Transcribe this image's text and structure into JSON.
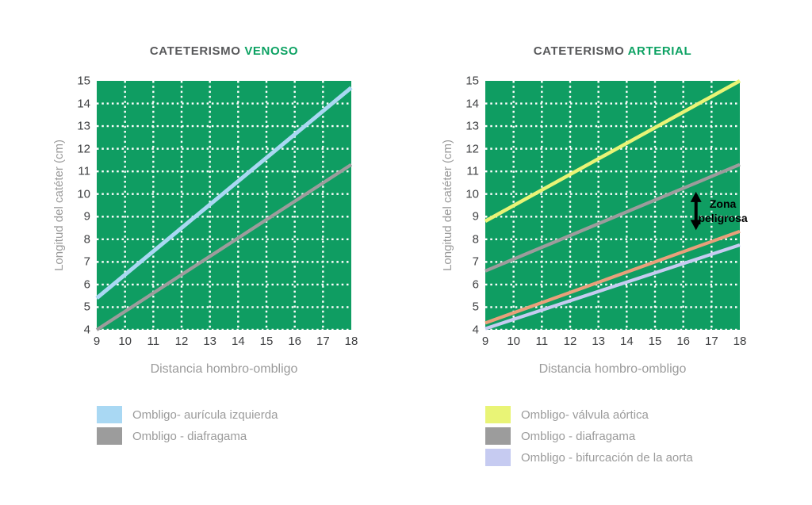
{
  "colors": {
    "plot_background": "#0f9d62",
    "grid": "#ffffff",
    "title_text": "#58595b",
    "title_accent": "#0da263",
    "axis_title_text": "#9b9b9b",
    "tick_text": "#3e3f41",
    "annotation_text": "#000000"
  },
  "chart_data": [
    {
      "id": "venoso",
      "type": "line",
      "title_prefix": "CATETERISMO",
      "title_accent": "VENOSO",
      "xlabel": "Distancia hombro-ombligo",
      "ylabel": "Longitud del catéter (cm)",
      "xlim": [
        9,
        18
      ],
      "ylim": [
        4,
        15
      ],
      "x_ticks": [
        9,
        10,
        11,
        12,
        13,
        14,
        15,
        16,
        17,
        18
      ],
      "y_ticks": [
        4,
        5,
        6,
        7,
        8,
        9,
        10,
        11,
        12,
        13,
        14,
        15
      ],
      "grid": "white dotted, horizontal at y=4..14, vertical at x=10..17",
      "legend_position": "below",
      "series": [
        {
          "name": "Ombligo- aurícula izquierda",
          "color": "#a9d8f3",
          "width": 5,
          "x": [
            9,
            18
          ],
          "y": [
            5.4,
            14.7
          ],
          "in_legend": true
        },
        {
          "name": "Ombligo - diafragama",
          "color": "#9c9c9c",
          "width": 4.2,
          "x": [
            9,
            18
          ],
          "y": [
            4.0,
            11.3
          ],
          "in_legend": true
        }
      ]
    },
    {
      "id": "arterial",
      "type": "line",
      "title_prefix": "CATETERISMO",
      "title_accent": "ARTERIAL",
      "xlabel": "Distancia hombro-ombligo",
      "ylabel": "Longitud del catéter (cm)",
      "xlim": [
        9,
        18
      ],
      "ylim": [
        4,
        15
      ],
      "x_ticks": [
        9,
        10,
        11,
        12,
        13,
        14,
        15,
        16,
        17,
        18
      ],
      "y_ticks": [
        4,
        5,
        6,
        7,
        8,
        9,
        10,
        11,
        12,
        13,
        14,
        15
      ],
      "grid": "white dotted, horizontal at y=4..14, vertical at x=10..17",
      "legend_position": "below",
      "series": [
        {
          "name": "Ombligo- válvula aórtica",
          "color": "#e9f476",
          "width": 4.5,
          "x": [
            9,
            18
          ],
          "y": [
            8.8,
            15.0
          ],
          "in_legend": true
        },
        {
          "name": "Ombligo - diafragama",
          "color": "#9c9c9c",
          "width": 4.2,
          "x": [
            9,
            18
          ],
          "y": [
            6.6,
            11.3
          ],
          "in_legend": true
        },
        {
          "name": "",
          "color": "#e9a07b",
          "width": 4.2,
          "x": [
            9,
            18
          ],
          "y": [
            4.3,
            8.35
          ],
          "in_legend": false
        },
        {
          "name": "Ombligo - bifurcación de la aorta",
          "color": "#c6cbf1",
          "width": 4.2,
          "x": [
            9,
            18
          ],
          "y": [
            4.05,
            7.75
          ],
          "in_legend": true
        }
      ],
      "annotation": {
        "label": "Zona peligrosa",
        "arrow_x": 16.45,
        "arrow_y": [
          8.4,
          10.1
        ],
        "label_x": 17.4,
        "label_y": 9.25
      }
    }
  ]
}
